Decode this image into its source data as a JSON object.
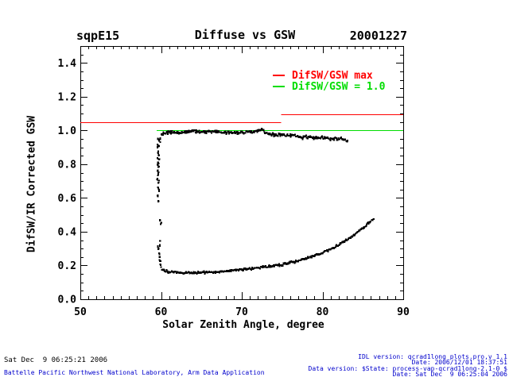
{
  "header": {
    "site": "sqpE15",
    "date": "20001227"
  },
  "colors": {
    "max_line": "#ff0000",
    "unity_line": "#00dd00",
    "points": "#000000",
    "footer_blue": "#0000cc"
  },
  "footer": {
    "generated": "Sat Dec  9 06:25:21 2006",
    "organization": "Battelle Pacific Northwest National Laboratory, Arm Data Application",
    "version_lines": [
      "IDL version: qcrad1long_plots.pro,v 1.1",
      "Date: 2006/12/01 18:37:51",
      "Data version: $State: process-vap-qcrad1long-2.1-0 $",
      "Date: Sat Dec  9 06:25:04 2006"
    ]
  },
  "chart_data": {
    "type": "scatter",
    "title": "Diffuse vs GSW",
    "xlabel": "Solar Zenith Angle, degree",
    "ylabel": "DifSW/IR Corrected GSW",
    "grid": false,
    "legend_position": "upper right inside",
    "axes": {
      "x": {
        "range": [
          50,
          90
        ],
        "tick_values": [
          50,
          60,
          70,
          80,
          90
        ],
        "tick_labels": [
          "50",
          "60",
          "70",
          "80",
          "90"
        ],
        "minor_step": 1
      },
      "y": {
        "range": [
          0.0,
          1.5
        ],
        "tick_values": [
          0.0,
          0.2,
          0.4,
          0.6,
          0.8,
          1.0,
          1.2,
          1.4
        ],
        "tick_labels": [
          "0.0",
          "0.2",
          "0.4",
          "0.6",
          "0.8",
          "1.0",
          "1.2",
          "1.4"
        ],
        "minor_step": 0.05
      }
    },
    "legend": {
      "entries": [
        {
          "label": "DifSW/GSW max",
          "color": "#ff0000"
        },
        {
          "label": "DifSW/GSW = 1.0",
          "color": "#00dd00"
        }
      ]
    },
    "ref_lines": [
      {
        "name": "DifSW/GSW max",
        "color": "#ff0000",
        "segments": [
          {
            "x1": 50.0,
            "x2": 74.9,
            "y": 1.05
          },
          {
            "x1": 74.9,
            "x2": 90.0,
            "y": 1.095
          }
        ]
      },
      {
        "name": "DifSW/GSW = 1.0",
        "color": "#00dd00",
        "segments": [
          {
            "x1": 59.45,
            "x2": 90.0,
            "y": 1.0
          }
        ]
      }
    ],
    "series": [
      {
        "name": "upper-branch",
        "style": "dense_curve",
        "jitter_y": 0.014,
        "anchors": [
          [
            59.88,
            0.93
          ],
          [
            59.92,
            0.96
          ],
          [
            60.0,
            0.975
          ],
          [
            60.4,
            0.985
          ],
          [
            61.0,
            0.99
          ],
          [
            62.0,
            0.988
          ],
          [
            63.0,
            0.992
          ],
          [
            64.0,
            0.996
          ],
          [
            65.0,
            0.994
          ],
          [
            66.0,
            0.99
          ],
          [
            67.0,
            0.993
          ],
          [
            68.0,
            0.99
          ],
          [
            69.0,
            0.986
          ],
          [
            70.0,
            0.988
          ],
          [
            71.0,
            0.99
          ],
          [
            71.9,
            0.995
          ],
          [
            72.5,
            1.003
          ],
          [
            72.9,
            0.988
          ],
          [
            73.5,
            0.978
          ],
          [
            74.5,
            0.973
          ],
          [
            75.5,
            0.972
          ],
          [
            76.5,
            0.968
          ],
          [
            77.5,
            0.962
          ],
          [
            78.5,
            0.957
          ],
          [
            79.5,
            0.958
          ],
          [
            80.5,
            0.956
          ],
          [
            81.5,
            0.951
          ],
          [
            82.5,
            0.948
          ],
          [
            83.0,
            0.94
          ],
          [
            83.15,
            0.928
          ]
        ]
      },
      {
        "name": "lower-branch",
        "style": "dense_curve",
        "jitter_y": 0.01,
        "anchors": [
          [
            59.78,
            0.275
          ],
          [
            59.85,
            0.235
          ],
          [
            59.95,
            0.2
          ],
          [
            60.1,
            0.178
          ],
          [
            60.5,
            0.167
          ],
          [
            61.2,
            0.162
          ],
          [
            62.2,
            0.159
          ],
          [
            63.5,
            0.157
          ],
          [
            65.0,
            0.158
          ],
          [
            66.5,
            0.162
          ],
          [
            68.0,
            0.167
          ],
          [
            69.5,
            0.173
          ],
          [
            71.0,
            0.181
          ],
          [
            72.5,
            0.19
          ],
          [
            74.0,
            0.198
          ],
          [
            75.5,
            0.21
          ],
          [
            77.0,
            0.228
          ],
          [
            78.5,
            0.25
          ],
          [
            80.0,
            0.275
          ],
          [
            81.5,
            0.308
          ],
          [
            83.0,
            0.35
          ],
          [
            84.2,
            0.39
          ],
          [
            85.2,
            0.43
          ],
          [
            86.0,
            0.462
          ],
          [
            86.4,
            0.483
          ]
        ]
      },
      {
        "name": "transition-column",
        "style": "sparse_points",
        "points": [
          [
            59.62,
            0.952
          ],
          [
            59.73,
            0.94
          ],
          [
            59.58,
            0.917
          ],
          [
            59.7,
            0.905
          ],
          [
            59.55,
            0.898
          ],
          [
            59.66,
            0.878
          ],
          [
            59.6,
            0.868
          ],
          [
            59.72,
            0.852
          ],
          [
            59.58,
            0.836
          ],
          [
            59.76,
            0.828
          ],
          [
            59.64,
            0.81
          ],
          [
            59.58,
            0.796
          ],
          [
            59.7,
            0.788
          ],
          [
            59.6,
            0.764
          ],
          [
            59.72,
            0.752
          ],
          [
            59.64,
            0.738
          ],
          [
            59.58,
            0.714
          ],
          [
            59.7,
            0.702
          ],
          [
            59.66,
            0.688
          ],
          [
            59.6,
            0.664
          ],
          [
            59.7,
            0.652
          ],
          [
            59.76,
            0.644
          ],
          [
            59.6,
            0.61
          ],
          [
            59.66,
            0.584
          ],
          [
            59.88,
            0.468
          ],
          [
            59.98,
            0.452
          ],
          [
            59.62,
            0.315
          ],
          [
            59.68,
            0.298
          ],
          [
            59.88,
            0.345
          ],
          [
            59.84,
            0.322
          ],
          [
            59.8,
            0.25
          ],
          [
            59.9,
            0.228
          ]
        ]
      }
    ]
  }
}
